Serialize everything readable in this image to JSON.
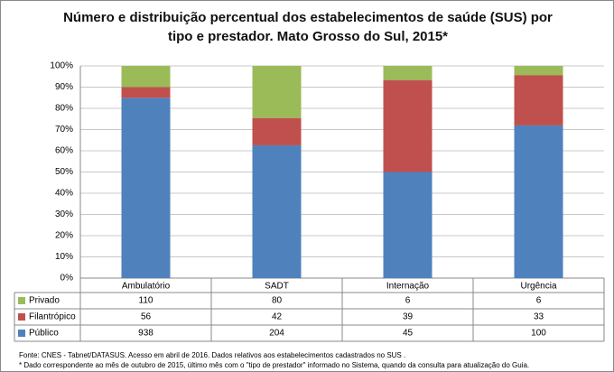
{
  "chart_data": {
    "type": "stacked_percent_bar",
    "title": "Número e distribuição percentual dos estabelecimentos de saúde (SUS) por tipo e prestador. Mato Grosso do Sul, 2015*",
    "categories": [
      "Ambulatório",
      "SADT",
      "Internação",
      "Urgência"
    ],
    "series": [
      {
        "name": "Privado",
        "color": "#9bbb59",
        "values": [
          110,
          80,
          6,
          6
        ]
      },
      {
        "name": "Filantrópico",
        "color": "#c0504d",
        "values": [
          56,
          42,
          39,
          33
        ]
      },
      {
        "name": "Público",
        "color": "#4f81bd",
        "values": [
          938,
          204,
          45,
          100
        ]
      }
    ],
    "ylim": [
      0,
      100
    ],
    "yticks": [
      {
        "value": 0,
        "label": "0%"
      },
      {
        "value": 10,
        "label": "10%"
      },
      {
        "value": 20,
        "label": "20%"
      },
      {
        "value": 30,
        "label": "30%"
      },
      {
        "value": 40,
        "label": "40%"
      },
      {
        "value": 50,
        "label": "50%"
      },
      {
        "value": 60,
        "label": "60%"
      },
      {
        "value": 70,
        "label": "70%"
      },
      {
        "value": 80,
        "label": "80%"
      },
      {
        "value": 90,
        "label": "90%"
      },
      {
        "value": 100,
        "label": "100%"
      }
    ],
    "grid": true,
    "notes": [
      "Fonte: CNES - Tabnet/DATASUS. Acesso em abril de 2016.  Dados relativos aos estabelecimentos cadastrados no SUS .",
      "* Dado correspondente ao mês de  outubro de 2015, último mês com o \"tipo de prestador\" informado no Sistema, quando da consulta para atualização do Guia."
    ]
  }
}
